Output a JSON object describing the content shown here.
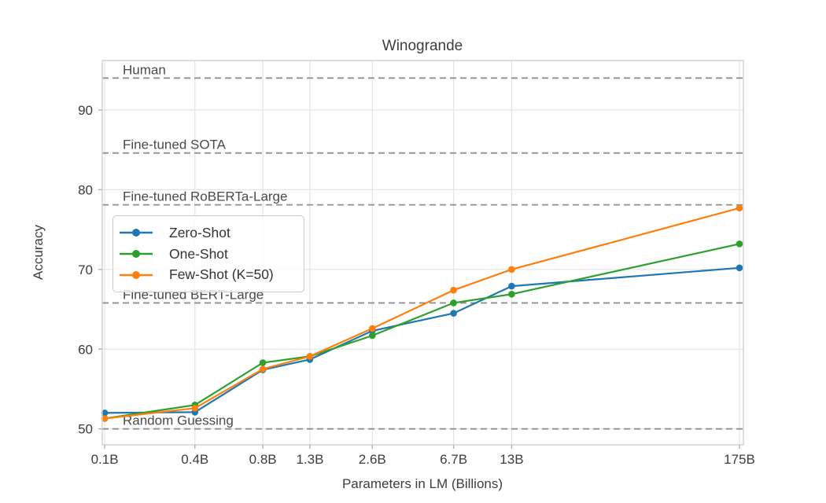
{
  "chart_data": {
    "type": "line",
    "title": "Winogrande",
    "xlabel": "Parameters in LM (Billions)",
    "ylabel": "Accuracy",
    "x_scale": "log",
    "x": [
      0.125,
      0.35,
      0.76,
      1.3,
      2.65,
      6.7,
      13,
      175
    ],
    "x_tick_labels": [
      "0.1B",
      "0.4B",
      "0.8B",
      "1.3B",
      "2.6B",
      "6.7B",
      "13B",
      "175B"
    ],
    "y_ticks": [
      50,
      60,
      70,
      80,
      90
    ],
    "xlim": [
      0.1216,
      183
    ],
    "ylim": [
      48.0,
      96.2
    ],
    "grid": true,
    "series": [
      {
        "name": "Zero-Shot",
        "color": "#1f77b4",
        "values": [
          52.0,
          52.1,
          57.4,
          58.7,
          62.3,
          64.5,
          67.9,
          70.2
        ]
      },
      {
        "name": "One-Shot",
        "color": "#2ca02c",
        "values": [
          51.3,
          53.0,
          58.3,
          59.1,
          61.7,
          65.8,
          66.9,
          73.2
        ]
      },
      {
        "name": "Few-Shot (K=50)",
        "color": "#ff7f0e",
        "values": [
          51.3,
          52.6,
          57.5,
          59.1,
          62.6,
          67.4,
          70.0,
          77.7
        ]
      }
    ],
    "reference_lines": [
      {
        "label": "Human",
        "value": 94.0
      },
      {
        "label": "Fine-tuned SOTA",
        "value": 84.6
      },
      {
        "label": "Fine-tuned RoBERTa-Large",
        "value": 78.1
      },
      {
        "label": "Fine-tuned BERT-Large",
        "value": 65.8
      },
      {
        "label": "Random Guessing",
        "value": 50.0
      }
    ],
    "legend_position": "center-left",
    "colors": {
      "grid": "#e4e4e4",
      "spine": "#cfcfcf",
      "reference_line": "#909090",
      "tick_mark": "#b0b0b0",
      "text": "#3d3d3d"
    }
  }
}
